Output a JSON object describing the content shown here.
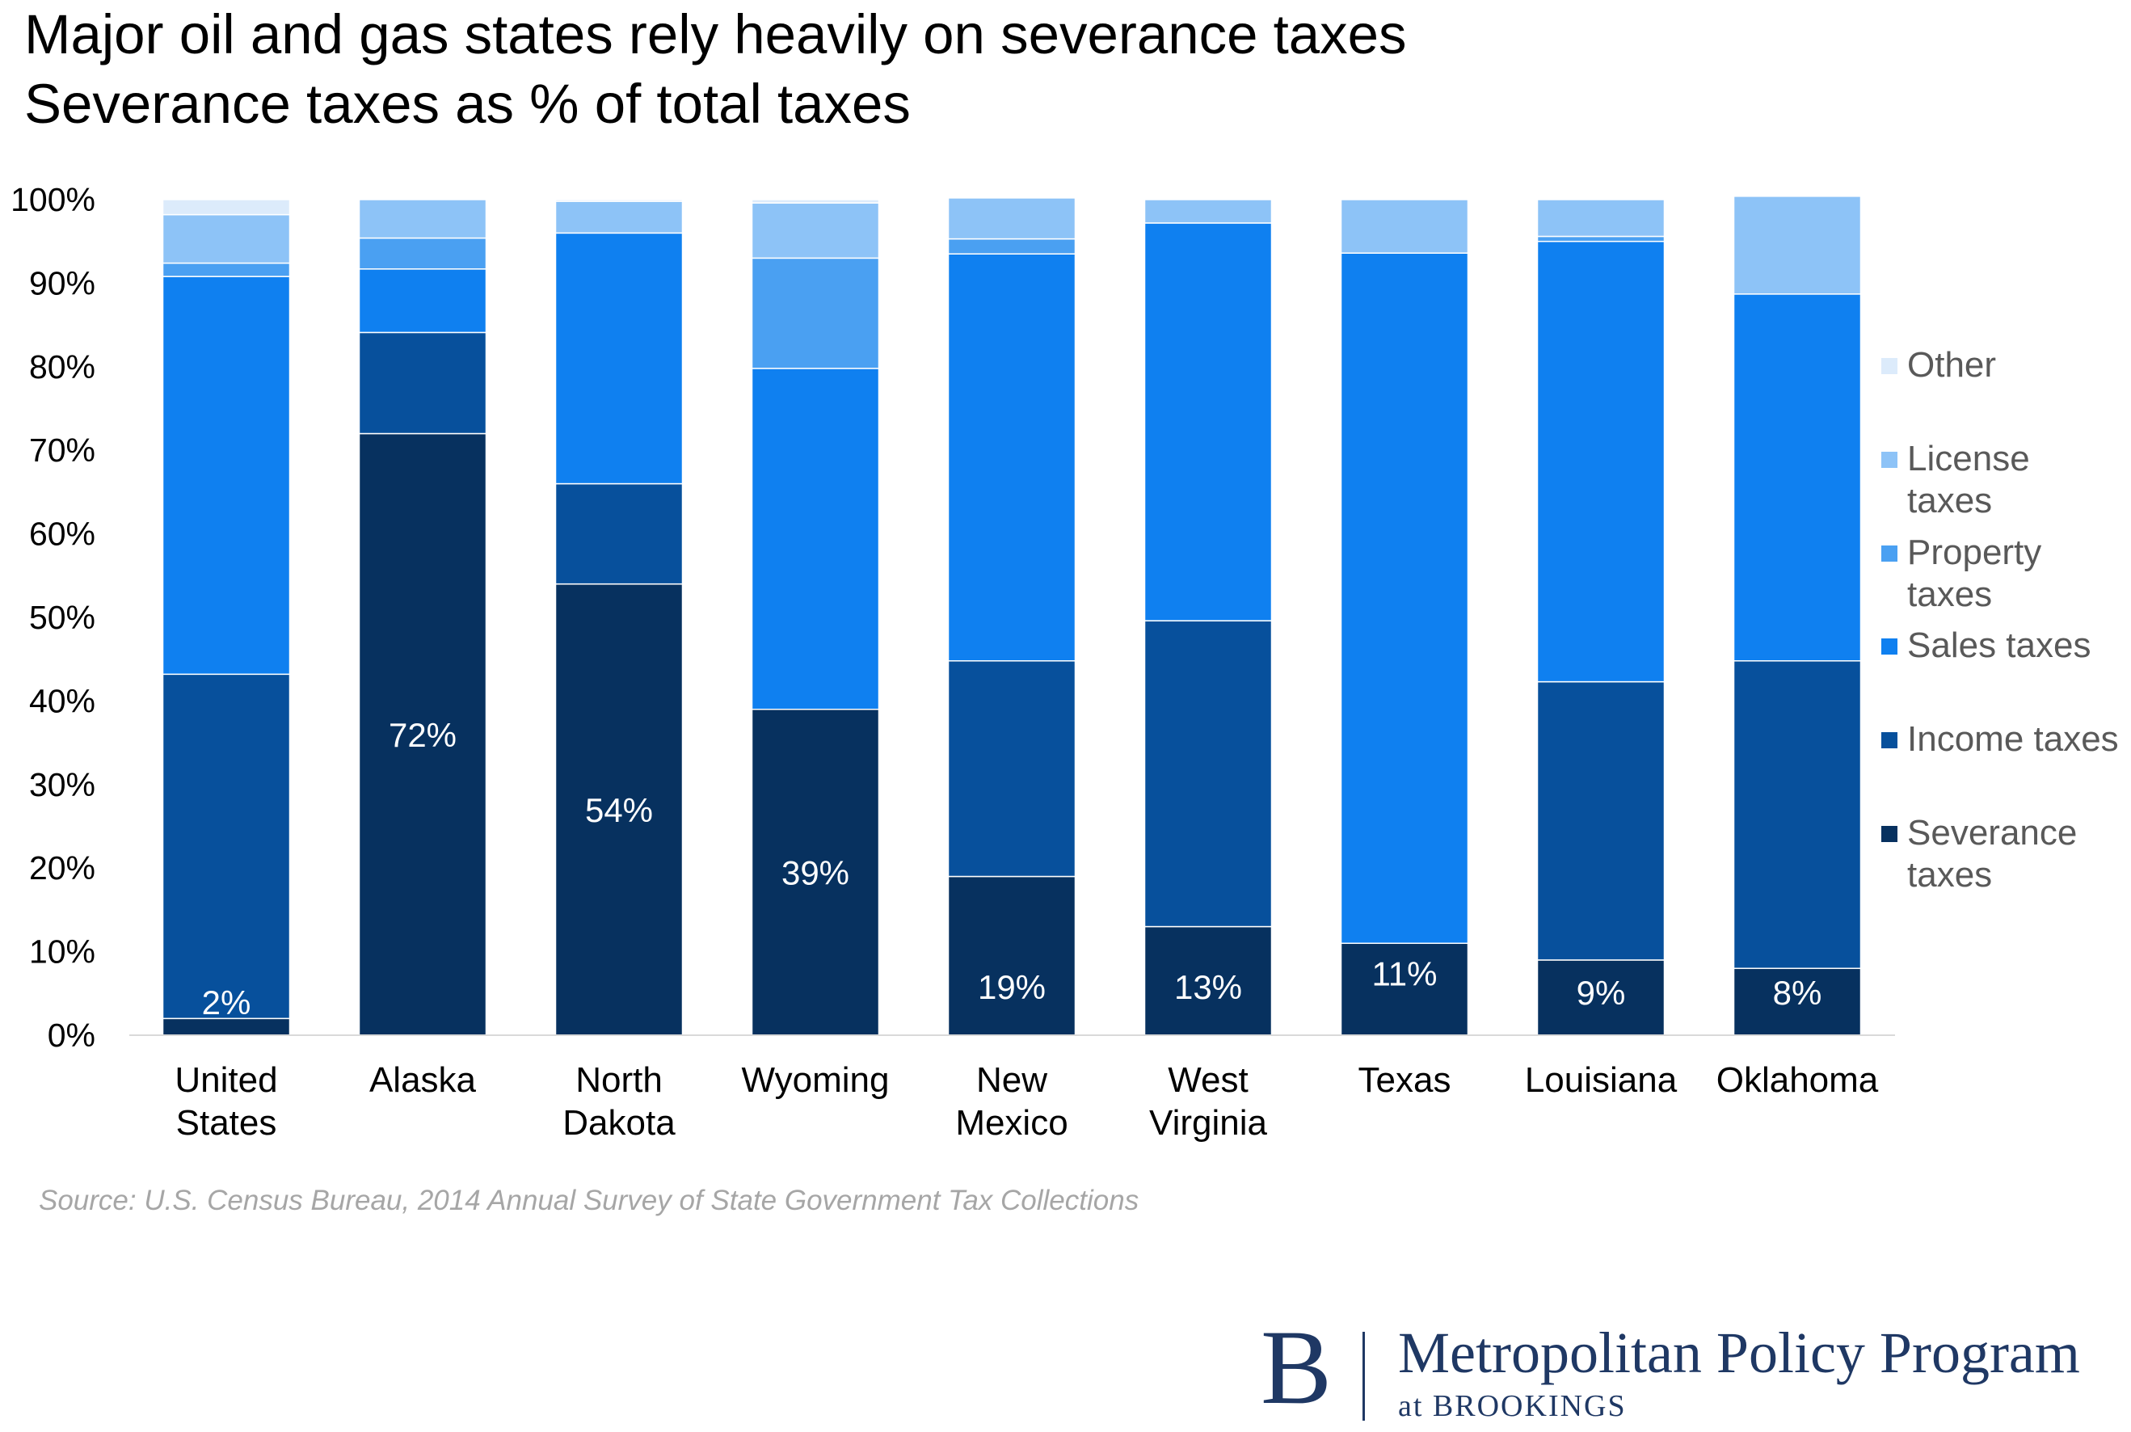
{
  "title": {
    "line1": "Major oil and gas states  rely heavily on severance taxes",
    "line2": "Severance taxes as % of total taxes"
  },
  "source": "Source: U.S. Census Bureau, 2014 Annual Survey of State Government Tax Collections",
  "logo": {
    "mark": "B",
    "name": "Metropolitan Policy Program",
    "sub": "at BROOKINGS"
  },
  "chart_data": {
    "type": "bar",
    "stacked": true,
    "percent": true,
    "ylim": [
      0,
      100
    ],
    "y_ticks": [
      "0%",
      "10%",
      "20%",
      "30%",
      "40%",
      "50%",
      "60%",
      "70%",
      "80%",
      "90%",
      "100%"
    ],
    "categories": [
      [
        "United",
        "States"
      ],
      [
        "Alaska"
      ],
      [
        "North",
        "Dakota"
      ],
      [
        "Wyoming"
      ],
      [
        "New",
        "Mexico"
      ],
      [
        "West",
        "Virginia"
      ],
      [
        "Texas"
      ],
      [
        "Louisiana"
      ],
      [
        "Oklahoma"
      ]
    ],
    "series": [
      {
        "name": "Severance taxes",
        "legend": [
          "Severance",
          "taxes"
        ],
        "color": "#07315f",
        "values": [
          2,
          72,
          54,
          39,
          19,
          13,
          11,
          9,
          8
        ]
      },
      {
        "name": "Income taxes",
        "legend": [
          "Income taxes"
        ],
        "color": "#07509c",
        "values": [
          41.2,
          12.1,
          12,
          0,
          25.8,
          36.6,
          0,
          33.3,
          36.8
        ]
      },
      {
        "name": "Sales taxes",
        "legend": [
          "Sales taxes"
        ],
        "color": "#0f80f0",
        "values": [
          47.6,
          7.6,
          30,
          40.8,
          48.7,
          47.6,
          82.6,
          52.7,
          43.9
        ]
      },
      {
        "name": "Property taxes",
        "legend": [
          "Property",
          "taxes"
        ],
        "color": "#4aa0f2",
        "values": [
          1.6,
          3.7,
          0,
          13.2,
          1.8,
          0,
          0,
          0.6,
          0
        ]
      },
      {
        "name": "License taxes",
        "legend": [
          "License",
          "taxes"
        ],
        "color": "#8dc3f7",
        "values": [
          5.8,
          4.6,
          3.8,
          6.6,
          4.9,
          2.8,
          6.4,
          4.4,
          11.7
        ]
      },
      {
        "name": "Other",
        "legend": [
          "Other"
        ],
        "color": "#dcebfb",
        "values": [
          1.8,
          0,
          0.2,
          0.4,
          0,
          0,
          0,
          0,
          0
        ]
      }
    ],
    "data_labels": [
      "2%",
      "72%",
      "54%",
      "39%",
      "19%",
      "13%",
      "11%",
      "9%",
      "8%"
    ],
    "legend_position": "right",
    "grid": false
  }
}
